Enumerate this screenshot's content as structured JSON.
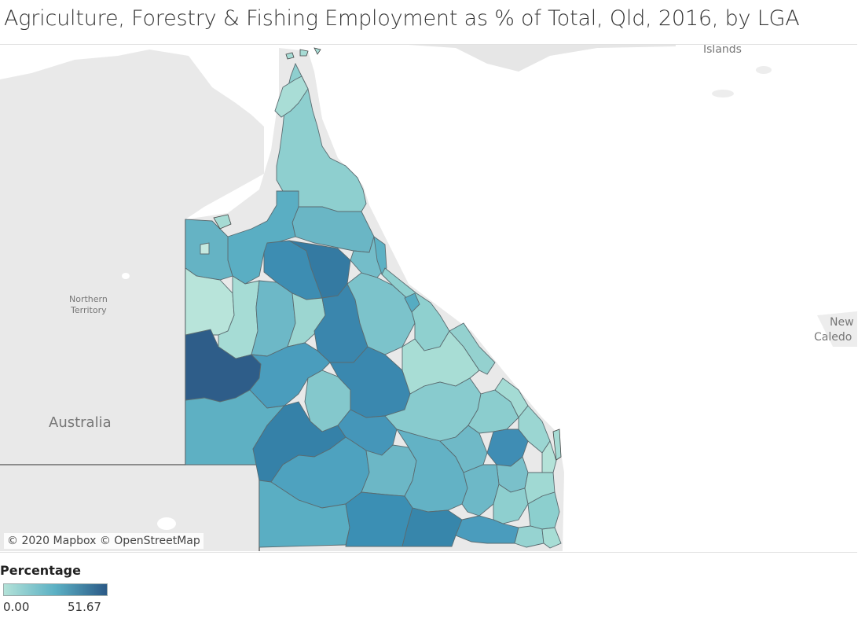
{
  "title": "Agriculture, Forestry & Fishing Employment as % of Total, Qld, 2016, by LGA",
  "map": {
    "basemap_labels": {
      "islands": "Islands",
      "northern_territory_line1": "Northern",
      "northern_territory_line2": "Territory",
      "australia": "Australia",
      "new_caledonia_line1": "New",
      "new_caledonia_line2": "Caledo"
    },
    "attribution": "© 2020 Mapbox © OpenStreetMap"
  },
  "legend": {
    "title": "Percentage",
    "min_label": "0.00",
    "max_label": "51.67",
    "color_low": "#b3e2d8",
    "color_mid": "#5bb0c4",
    "color_high": "#2b5a87"
  },
  "colors": {
    "land": "#e9e9e9",
    "water": "#ffffff",
    "border": "#5f5f5f",
    "title_text": "#333333"
  }
}
